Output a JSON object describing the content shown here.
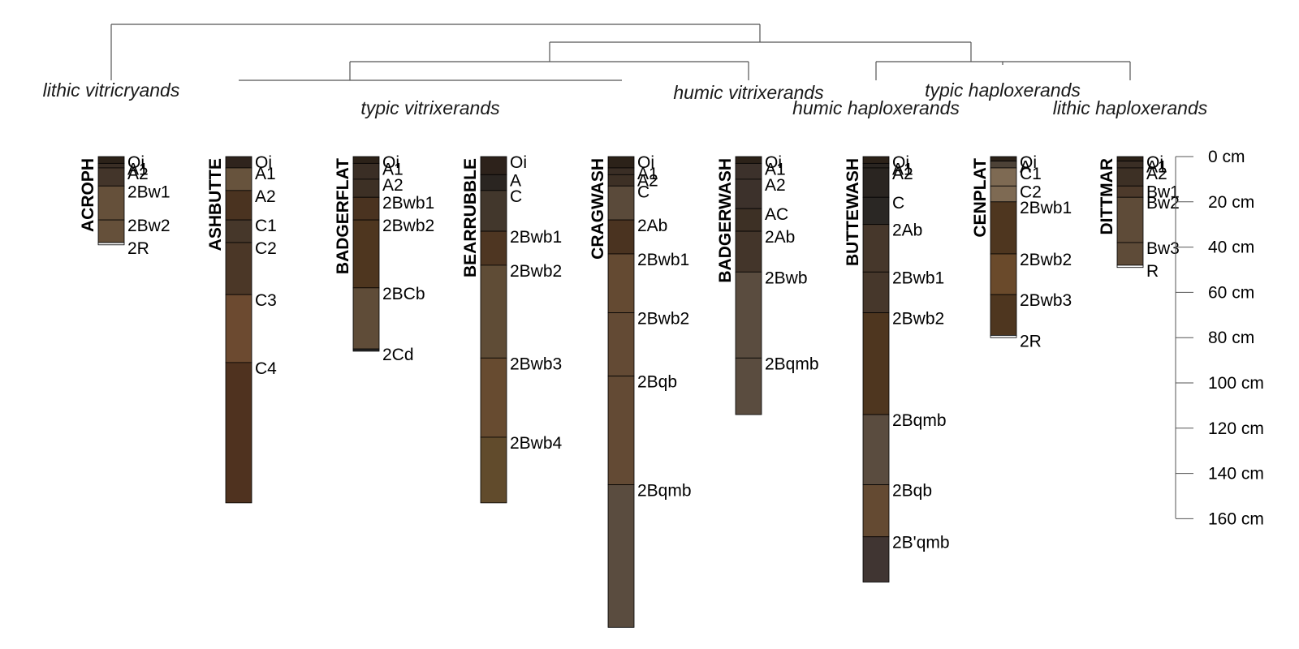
{
  "diagram": {
    "taxa": [
      {
        "text": "lithic vitricryands"
      },
      {
        "text": "typic vitrixerands"
      },
      {
        "text": "humic vitrixerands"
      },
      {
        "text": "humic haploxerands"
      },
      {
        "text": "typic haploxerands"
      },
      {
        "text": "lithic haploxerands"
      }
    ],
    "profiles": [
      {
        "name": "ACROPH",
        "horizons": [
          {
            "name": "Oi",
            "top": 0,
            "bottom": 3,
            "color": "#2c2219"
          },
          {
            "name": "A1",
            "top": 3,
            "bottom": 5,
            "color": "#3a2e25"
          },
          {
            "name": "A2",
            "top": 5,
            "bottom": 13,
            "color": "#43352a"
          },
          {
            "name": "2Bw1",
            "top": 13,
            "bottom": 28,
            "color": "#65503a"
          },
          {
            "name": "2Bw2",
            "top": 28,
            "bottom": 38,
            "color": "#65503a"
          },
          {
            "name": "2R",
            "top": 38,
            "bottom": 39,
            "color": "#f4f4f4"
          }
        ]
      },
      {
        "name": "ASHBUTTE",
        "horizons": [
          {
            "name": "Oi",
            "top": 0,
            "bottom": 5,
            "color": "#2f241d"
          },
          {
            "name": "A1",
            "top": 5,
            "bottom": 15,
            "color": "#67533d"
          },
          {
            "name": "A2",
            "top": 15,
            "bottom": 28,
            "color": "#4a3320"
          },
          {
            "name": "C1",
            "top": 28,
            "bottom": 38,
            "color": "#46372a"
          },
          {
            "name": "C2",
            "top": 38,
            "bottom": 61,
            "color": "#4b3727"
          },
          {
            "name": "C3",
            "top": 61,
            "bottom": 91,
            "color": "#6c4a30"
          },
          {
            "name": "C4",
            "top": 91,
            "bottom": 153,
            "color": "#4f321f"
          }
        ]
      },
      {
        "name": "BADGERFLAT",
        "horizons": [
          {
            "name": "Oi",
            "top": 0,
            "bottom": 3,
            "color": "#2c2219"
          },
          {
            "name": "A1",
            "top": 3,
            "bottom": 10,
            "color": "#3a2e25"
          },
          {
            "name": "A2",
            "top": 10,
            "bottom": 18,
            "color": "#3d3025"
          },
          {
            "name": "2Bwb1",
            "top": 18,
            "bottom": 28,
            "color": "#4a3320"
          },
          {
            "name": "2Bwb2",
            "top": 28,
            "bottom": 58,
            "color": "#4e361f"
          },
          {
            "name": "2BCb",
            "top": 58,
            "bottom": 85,
            "color": "#5f4c38"
          },
          {
            "name": "2Cd",
            "top": 85,
            "bottom": 86,
            "color": "#2a2a2a"
          }
        ]
      },
      {
        "name": "BEARRUBBLE",
        "horizons": [
          {
            "name": "Oi",
            "top": 0,
            "bottom": 8,
            "color": "#2d221b"
          },
          {
            "name": "A",
            "top": 8,
            "bottom": 15,
            "color": "#2a2521"
          },
          {
            "name": "C",
            "top": 15,
            "bottom": 33,
            "color": "#42372c"
          },
          {
            "name": "2Bwb1",
            "top": 33,
            "bottom": 48,
            "color": "#4e3622"
          },
          {
            "name": "2Bwb2",
            "top": 48,
            "bottom": 89,
            "color": "#5f4c36"
          },
          {
            "name": "2Bwb3",
            "top": 89,
            "bottom": 124,
            "color": "#674b30"
          },
          {
            "name": "2Bwb4",
            "top": 124,
            "bottom": 153,
            "color": "#614b2c"
          }
        ]
      },
      {
        "name": "CRAGWASH",
        "horizons": [
          {
            "name": "Oi",
            "top": 0,
            "bottom": 5,
            "color": "#2c2219"
          },
          {
            "name": "A1",
            "top": 5,
            "bottom": 8,
            "color": "#3a2e25"
          },
          {
            "name": "A2",
            "top": 8,
            "bottom": 13,
            "color": "#3d3025"
          },
          {
            "name": "C",
            "top": 13,
            "bottom": 28,
            "color": "#5a4a3a"
          },
          {
            "name": "2Ab",
            "top": 28,
            "bottom": 43,
            "color": "#4a3320"
          },
          {
            "name": "2Bwb1",
            "top": 43,
            "bottom": 69,
            "color": "#644a32"
          },
          {
            "name": "2Bwb2",
            "top": 69,
            "bottom": 97,
            "color": "#634a34"
          },
          {
            "name": "2Bqb",
            "top": 97,
            "bottom": 145,
            "color": "#634a34"
          },
          {
            "name": "2Bqmb",
            "top": 145,
            "bottom": 208,
            "color": "#5a4c3f"
          }
        ]
      },
      {
        "name": "BADGERWASH",
        "horizons": [
          {
            "name": "Oi",
            "top": 0,
            "bottom": 3,
            "color": "#2c2219"
          },
          {
            "name": "A1",
            "top": 3,
            "bottom": 10,
            "color": "#3c312b"
          },
          {
            "name": "A2",
            "top": 10,
            "bottom": 23,
            "color": "#3c312b"
          },
          {
            "name": "AC",
            "top": 23,
            "bottom": 33,
            "color": "#3d3025"
          },
          {
            "name": "2Ab",
            "top": 33,
            "bottom": 51,
            "color": "#43352a"
          },
          {
            "name": "2Bwb",
            "top": 51,
            "bottom": 89,
            "color": "#5a4c3f"
          },
          {
            "name": "2Bqmb",
            "top": 89,
            "bottom": 114,
            "color": "#5a4c3f"
          }
        ]
      },
      {
        "name": "BUTTEWASH",
        "horizons": [
          {
            "name": "Oi",
            "top": 0,
            "bottom": 3,
            "color": "#2c2219"
          },
          {
            "name": "A1",
            "top": 3,
            "bottom": 5,
            "color": "#2a2521"
          },
          {
            "name": "A2",
            "top": 5,
            "bottom": 18,
            "color": "#2a2521"
          },
          {
            "name": "C",
            "top": 18,
            "bottom": 30,
            "color": "#2a2724"
          },
          {
            "name": "2Ab",
            "top": 30,
            "bottom": 51,
            "color": "#46372b"
          },
          {
            "name": "2Bwb1",
            "top": 51,
            "bottom": 69,
            "color": "#46372b"
          },
          {
            "name": "2Bwb2",
            "top": 69,
            "bottom": 114,
            "color": "#4e361f"
          },
          {
            "name": "2Bqmb",
            "top": 114,
            "bottom": 145,
            "color": "#5a4c3f"
          },
          {
            "name": "2Bqb",
            "top": 145,
            "bottom": 168,
            "color": "#644a32"
          },
          {
            "name": "2B'qmb",
            "top": 168,
            "bottom": 188,
            "color": "#403532"
          }
        ]
      },
      {
        "name": "CENPLAT",
        "horizons": [
          {
            "name": "Oi",
            "top": 0,
            "bottom": 2,
            "color": "#2c2219"
          },
          {
            "name": "A",
            "top": 2,
            "bottom": 5,
            "color": "#4d4237"
          },
          {
            "name": "C1",
            "top": 5,
            "bottom": 13,
            "color": "#7e6a53"
          },
          {
            "name": "C2",
            "top": 13,
            "bottom": 20,
            "color": "#7e6a53"
          },
          {
            "name": "2Bwb1",
            "top": 20,
            "bottom": 43,
            "color": "#4e361f"
          },
          {
            "name": "2Bwb2",
            "top": 43,
            "bottom": 61,
            "color": "#6a4a2b"
          },
          {
            "name": "2Bwb3",
            "top": 61,
            "bottom": 79,
            "color": "#4e361f"
          },
          {
            "name": "2R",
            "top": 79,
            "bottom": 80,
            "color": "#f4f4f4"
          }
        ]
      },
      {
        "name": "DITTMAR",
        "horizons": [
          {
            "name": "Oi",
            "top": 0,
            "bottom": 2,
            "color": "#2c2219"
          },
          {
            "name": "A1",
            "top": 2,
            "bottom": 5,
            "color": "#3a2e25"
          },
          {
            "name": "A2",
            "top": 5,
            "bottom": 13,
            "color": "#3d3025"
          },
          {
            "name": "Bw1",
            "top": 13,
            "bottom": 18,
            "color": "#4d3a2b"
          },
          {
            "name": "Bw2",
            "top": 18,
            "bottom": 38,
            "color": "#5e4b38"
          },
          {
            "name": "Bw3",
            "top": 38,
            "bottom": 48,
            "color": "#5e4b38"
          },
          {
            "name": "R",
            "top": 48,
            "bottom": 49,
            "color": "#f4f4f4"
          }
        ]
      }
    ],
    "depth_axis": {
      "ticks": [
        "0 cm",
        "20 cm",
        "40 cm",
        "60 cm",
        "80 cm",
        "100 cm",
        "120 cm",
        "140 cm",
        "160 cm"
      ]
    }
  }
}
